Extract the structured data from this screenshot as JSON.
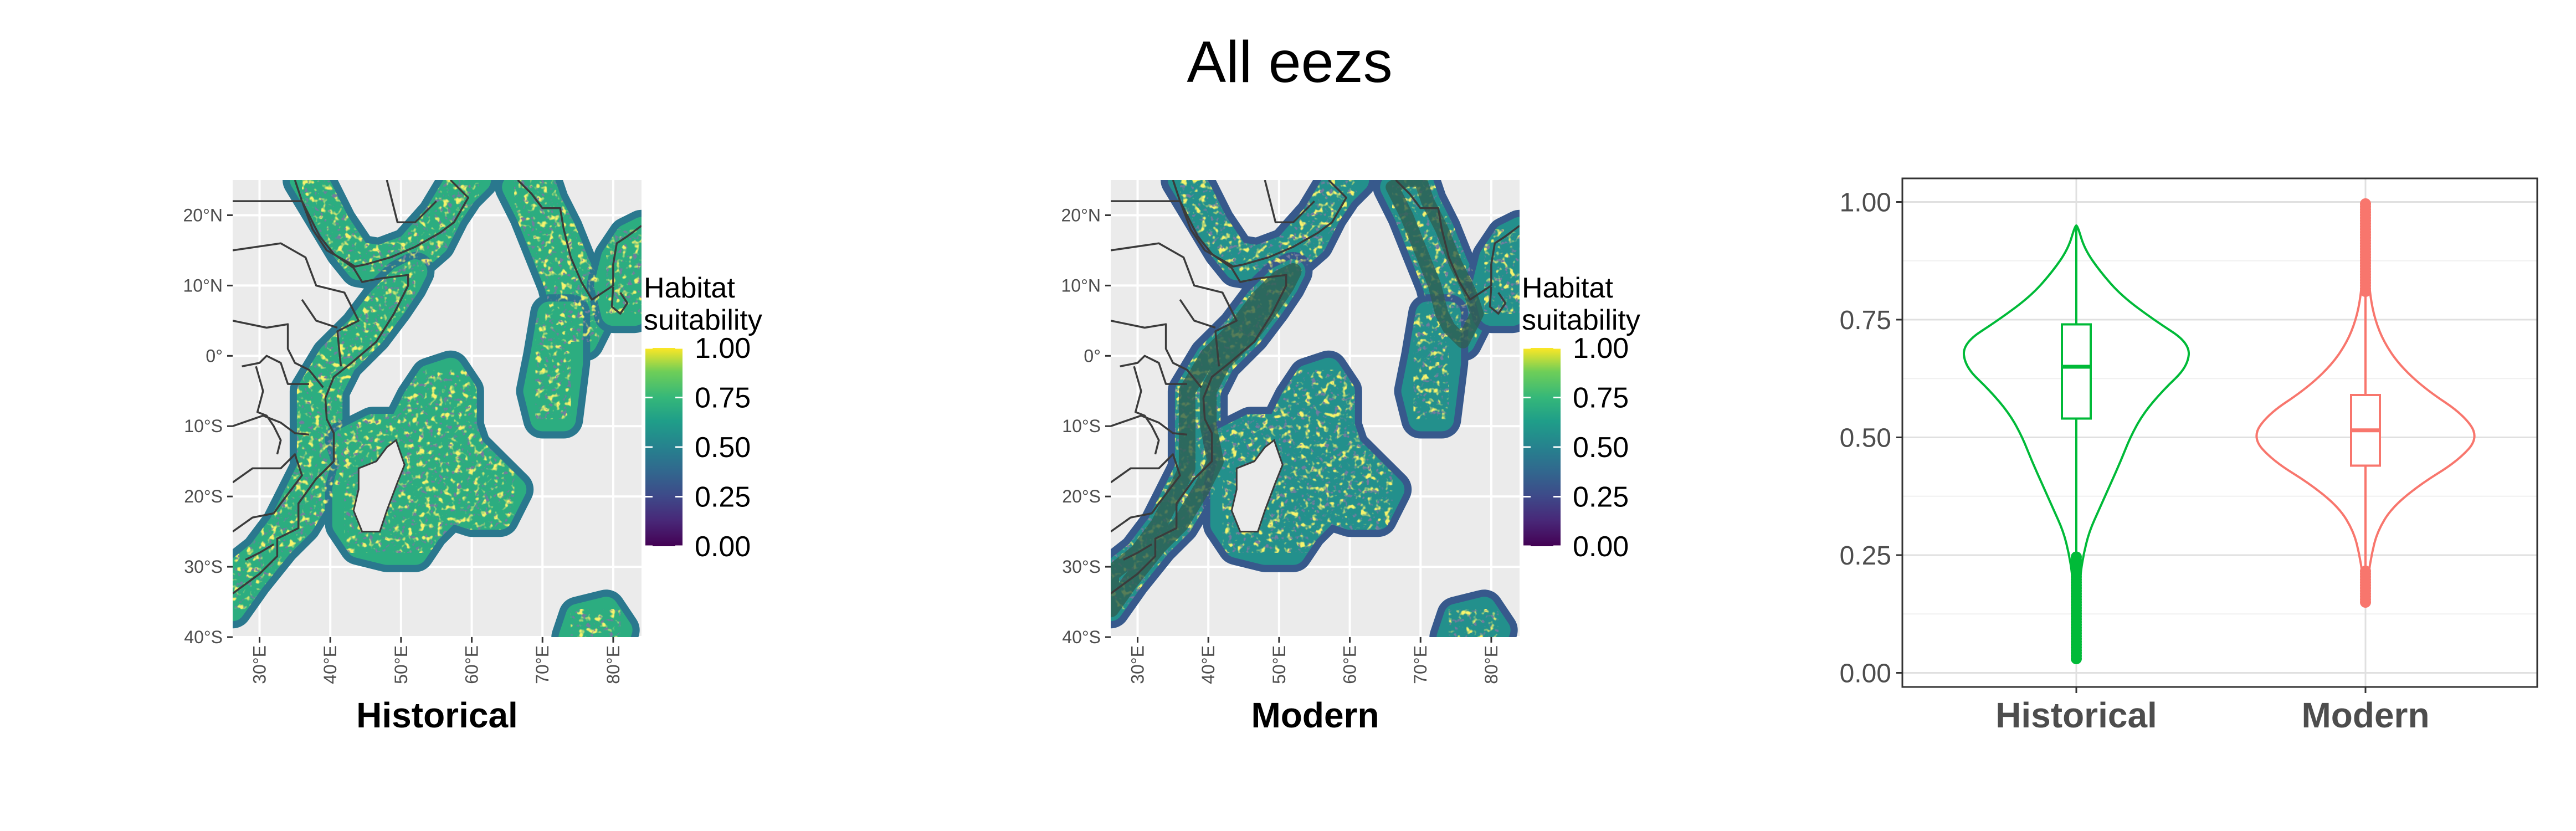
{
  "figure": {
    "title": "All eezs"
  },
  "maps": [
    {
      "label": "Historical",
      "legend_title": [
        "Habitat",
        "suitability"
      ],
      "legend_ticks": [
        "1.00",
        "0.75",
        "0.50",
        "0.25",
        "0.00"
      ],
      "lat_ticks": [
        "20°N",
        "10°N",
        "0°",
        "10°S",
        "20°S",
        "30°S",
        "40°S"
      ],
      "lon_ticks": [
        "30°E",
        "40°E",
        "50°E",
        "60°E",
        "70°E",
        "80°E"
      ],
      "dominant_suitability": 0.62,
      "colors": {
        "background": "#ebebeb",
        "grid": "#ffffff",
        "land_border": "#3b3b3b"
      }
    },
    {
      "label": "Modern",
      "legend_title": [
        "Habitat",
        "suitability"
      ],
      "legend_ticks": [
        "1.00",
        "0.75",
        "0.50",
        "0.25",
        "0.00"
      ],
      "lat_ticks": [
        "20°N",
        "10°N",
        "0°",
        "10°S",
        "20°S",
        "30°S",
        "40°S"
      ],
      "lon_ticks": [
        "30°E",
        "40°E",
        "50°E",
        "60°E",
        "70°E",
        "80°E"
      ],
      "dominant_suitability": 0.5,
      "colors": {
        "background": "#ebebeb",
        "grid": "#ffffff",
        "land_border": "#3b3b3b"
      }
    }
  ],
  "chart_data": {
    "type": "violin",
    "categories": [
      "Historical",
      "Modern"
    ],
    "y_ticks": [
      "0.00",
      "0.25",
      "0.50",
      "0.75",
      "1.00"
    ],
    "ylim": [
      -0.03,
      1.05
    ],
    "grid": true,
    "legend": "none",
    "series": [
      {
        "category": "Historical",
        "color": "#00ba38",
        "box": {
          "q1": 0.54,
          "median": 0.65,
          "q3": 0.74,
          "whisker_low": 0.25,
          "whisker_high": 0.95
        },
        "min": 0.03,
        "max": 0.95,
        "density": [
          [
            0.03,
            0.003
          ],
          [
            0.1,
            0.01
          ],
          [
            0.2,
            0.03
          ],
          [
            0.25,
            0.06
          ],
          [
            0.3,
            0.11
          ],
          [
            0.35,
            0.2
          ],
          [
            0.4,
            0.29
          ],
          [
            0.45,
            0.38
          ],
          [
            0.5,
            0.46
          ],
          [
            0.55,
            0.57
          ],
          [
            0.6,
            0.74
          ],
          [
            0.65,
            0.95
          ],
          [
            0.7,
            0.97
          ],
          [
            0.75,
            0.66
          ],
          [
            0.8,
            0.39
          ],
          [
            0.85,
            0.21
          ],
          [
            0.9,
            0.07
          ],
          [
            0.95,
            0.01
          ]
        ]
      },
      {
        "category": "Modern",
        "color": "#f8766d",
        "box": {
          "q1": 0.44,
          "median": 0.515,
          "q3": 0.59,
          "whisker_low": 0.22,
          "whisker_high": 0.81
        },
        "min": 0.15,
        "max": 1.0,
        "density": [
          [
            0.15,
            0.005
          ],
          [
            0.2,
            0.02
          ],
          [
            0.25,
            0.05
          ],
          [
            0.3,
            0.1
          ],
          [
            0.35,
            0.22
          ],
          [
            0.4,
            0.46
          ],
          [
            0.45,
            0.78
          ],
          [
            0.5,
            0.96
          ],
          [
            0.55,
            0.82
          ],
          [
            0.6,
            0.52
          ],
          [
            0.65,
            0.3
          ],
          [
            0.7,
            0.16
          ],
          [
            0.75,
            0.08
          ],
          [
            0.8,
            0.04
          ],
          [
            0.85,
            0.025
          ],
          [
            0.9,
            0.016
          ],
          [
            0.95,
            0.01
          ],
          [
            1.0,
            0.004
          ]
        ]
      }
    ]
  }
}
